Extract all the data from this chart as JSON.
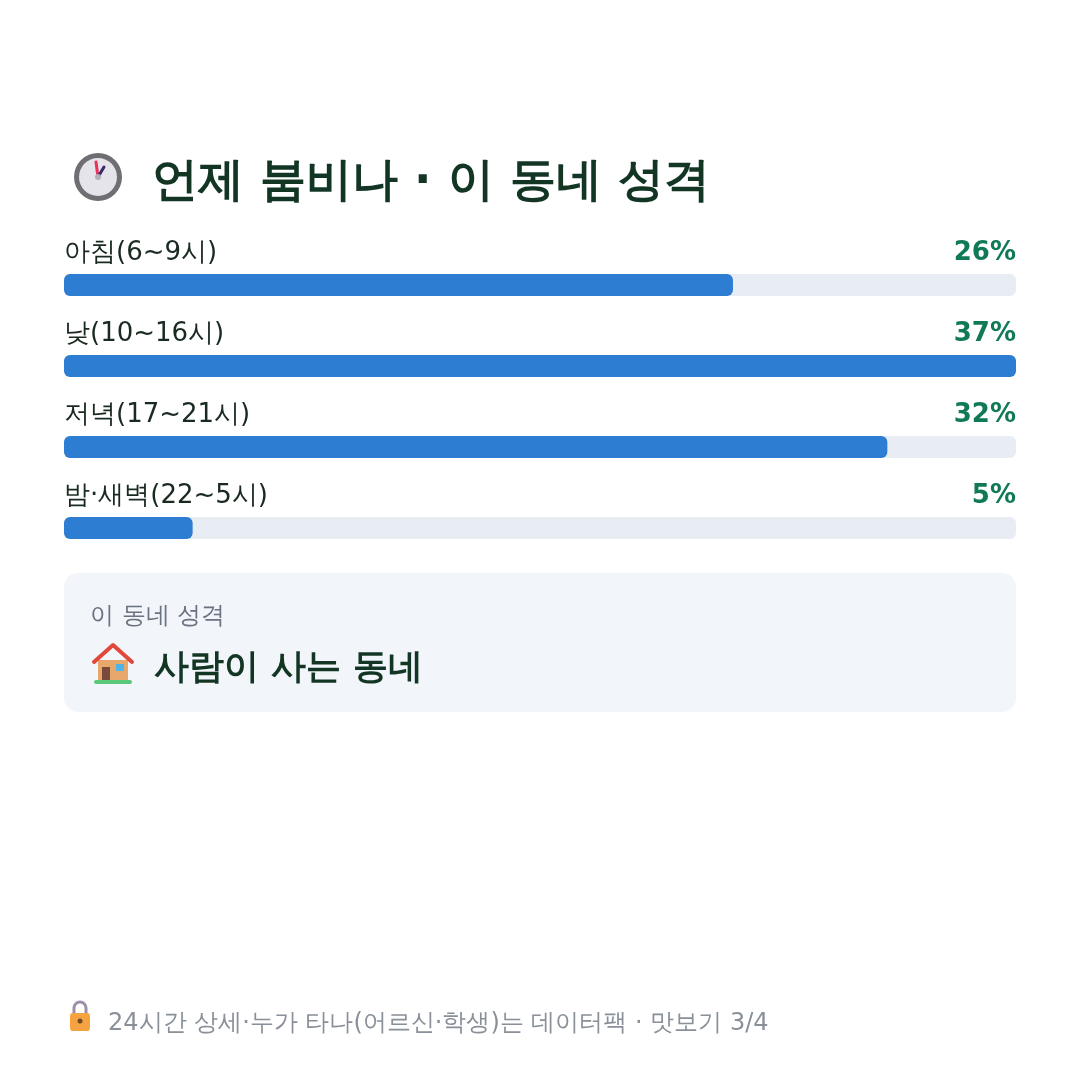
{
  "chart_data": {
    "type": "bar",
    "orientation": "horizontal",
    "title": "언제 붐비나 · 이 동네 성격",
    "categories": [
      "아침(6~9시)",
      "낮(10~16시)",
      "저녁(17~21시)",
      "밤·새벽(22~5시)"
    ],
    "values": [
      26,
      37,
      32,
      5
    ],
    "value_labels": [
      "26%",
      "37%",
      "32%",
      "5%"
    ],
    "color": "#2d7dd2",
    "xlim": [
      0,
      37
    ],
    "annotations": [
      "이 동네 성격",
      "사람이 사는 동네",
      "24시간 상세·누가 타나(어르신·학생)는 데이터팩 · 맛보기 3/4"
    ]
  }
}
